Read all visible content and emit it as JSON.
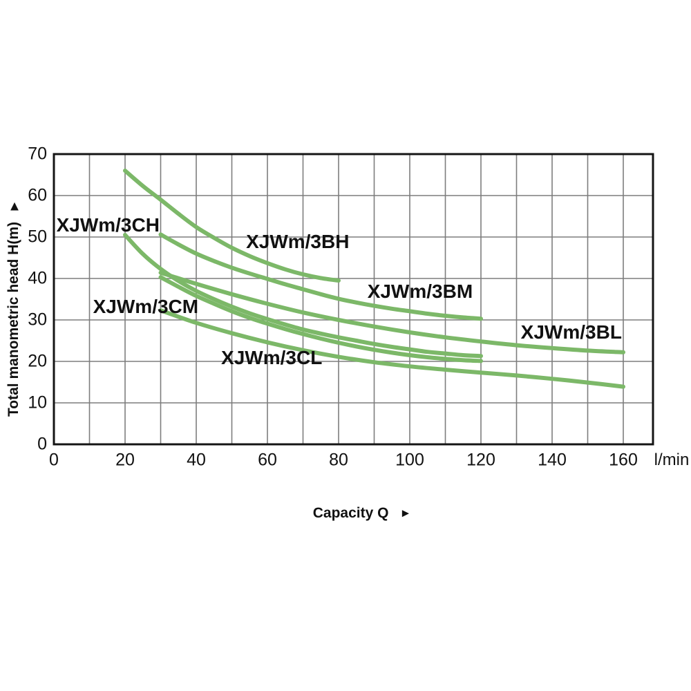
{
  "chart_data": {
    "type": "line",
    "title": "",
    "xlabel": "Capacity Q",
    "x_unit": "l/min",
    "ylabel": "Total manometric head H(m)",
    "y_axis_arrow": "▲",
    "x_axis_arrow": "►",
    "xlim": [
      0,
      168
    ],
    "ylim": [
      0,
      70
    ],
    "x_ticks": [
      0,
      20,
      40,
      60,
      80,
      100,
      120,
      140,
      160
    ],
    "y_ticks": [
      0,
      10,
      20,
      30,
      40,
      50,
      60,
      70
    ],
    "x_grid_step": 10,
    "y_grid_step": 10,
    "grid": true,
    "legend_position": "inline-labels",
    "colors": {
      "curve": "#7cb868",
      "grid": "#7d7d7d",
      "axis_border": "#141414",
      "text": "#111111",
      "background": "#ffffff"
    },
    "series": [
      {
        "name": "XJWm/3CH",
        "label_pos_q": 15.2,
        "label_pos_h": 52.8,
        "points": [
          [
            20,
            66
          ],
          [
            25,
            62.3
          ],
          [
            30,
            59
          ],
          [
            35,
            55.6
          ],
          [
            40,
            52.4
          ],
          [
            45,
            49.8
          ],
          [
            50,
            47.4
          ],
          [
            55,
            45.4
          ],
          [
            60,
            43.7
          ],
          [
            65,
            42.2
          ],
          [
            70,
            41
          ],
          [
            75,
            40.1
          ],
          [
            80,
            39.5
          ]
        ]
      },
      {
        "name": "XJWm/3BH",
        "label_pos_q": 68.5,
        "label_pos_h": 48.8,
        "points": [
          [
            30,
            50.6
          ],
          [
            35,
            48.2
          ],
          [
            40,
            46
          ],
          [
            45,
            44.2
          ],
          [
            50,
            42.6
          ],
          [
            55,
            41.2
          ],
          [
            60,
            39.9
          ],
          [
            65,
            38.6
          ],
          [
            70,
            37.4
          ],
          [
            75,
            36.2
          ],
          [
            80,
            35.1
          ],
          [
            85,
            34.2
          ],
          [
            90,
            33.4
          ],
          [
            95,
            32.7
          ],
          [
            100,
            32.1
          ],
          [
            105,
            31.5
          ],
          [
            110,
            31
          ],
          [
            115,
            30.6
          ],
          [
            120,
            30.3
          ]
        ]
      },
      {
        "name": "XJWm/3CM",
        "label_pos_q": 25.8,
        "label_pos_h": 33.2,
        "points": [
          [
            20,
            50.5
          ],
          [
            25,
            45.9
          ],
          [
            30,
            42.3
          ],
          [
            35,
            39.4
          ],
          [
            40,
            37
          ],
          [
            45,
            35
          ],
          [
            50,
            33.2
          ],
          [
            55,
            31.6
          ],
          [
            60,
            30.2
          ],
          [
            65,
            28.9
          ],
          [
            70,
            27.7
          ],
          [
            75,
            26.7
          ],
          [
            80,
            25.8
          ],
          [
            85,
            25
          ],
          [
            90,
            24.2
          ],
          [
            95,
            23.5
          ],
          [
            100,
            22.9
          ],
          [
            105,
            22.3
          ],
          [
            110,
            21.9
          ],
          [
            115,
            21.5
          ],
          [
            120,
            21.3
          ]
        ]
      },
      {
        "name": "XJWm/3BM",
        "label_pos_q": 102.9,
        "label_pos_h": 36.8,
        "points": [
          [
            30,
            41.4
          ],
          [
            40,
            38.7
          ],
          [
            50,
            36.2
          ],
          [
            60,
            33.9
          ],
          [
            70,
            31.8
          ],
          [
            80,
            30
          ],
          [
            90,
            28.4
          ],
          [
            100,
            27
          ],
          [
            110,
            25.8
          ],
          [
            120,
            24.8
          ],
          [
            130,
            23.9
          ],
          [
            140,
            23.2
          ],
          [
            150,
            22.6
          ],
          [
            160,
            22.2
          ]
        ]
      },
      {
        "name": "XJWm/3CL",
        "label_pos_q": 61.2,
        "label_pos_h": 20.8,
        "points": [
          [
            30,
            40.3
          ],
          [
            35,
            38
          ],
          [
            40,
            35.8
          ],
          [
            45,
            33.9
          ],
          [
            50,
            32.1
          ],
          [
            55,
            30.5
          ],
          [
            60,
            29.1
          ],
          [
            65,
            27.8
          ],
          [
            70,
            26.6
          ],
          [
            75,
            25.5
          ],
          [
            80,
            24.5
          ],
          [
            85,
            23.6
          ],
          [
            90,
            22.8
          ],
          [
            95,
            22.1
          ],
          [
            100,
            21.5
          ],
          [
            105,
            21
          ],
          [
            110,
            20.6
          ],
          [
            115,
            20.3
          ],
          [
            120,
            20.1
          ]
        ]
      },
      {
        "name": "XJWm/3BL",
        "label_pos_q": 145.4,
        "label_pos_h": 27.0,
        "points": [
          [
            30,
            32.3
          ],
          [
            40,
            29.3
          ],
          [
            50,
            26.8
          ],
          [
            60,
            24.6
          ],
          [
            70,
            22.7
          ],
          [
            80,
            21.1
          ],
          [
            90,
            19.8
          ],
          [
            100,
            18.8
          ],
          [
            110,
            18
          ],
          [
            120,
            17.3
          ],
          [
            130,
            16.6
          ],
          [
            140,
            15.8
          ],
          [
            150,
            14.9
          ],
          [
            160,
            13.9
          ]
        ]
      }
    ]
  }
}
